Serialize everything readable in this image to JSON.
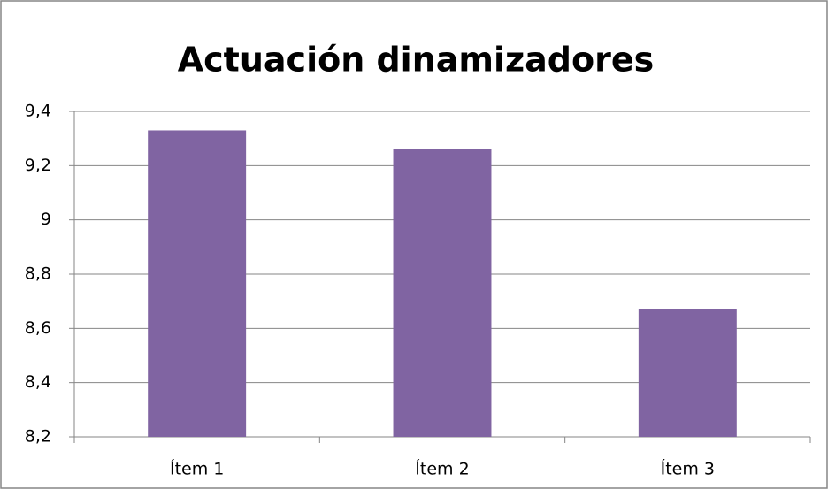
{
  "chart_data": {
    "type": "bar",
    "title": "Actuación dinamizadores",
    "categories": [
      "Ítem 1",
      "Ítem 2",
      "Ítem 3"
    ],
    "values": [
      9.33,
      9.26,
      8.67
    ],
    "color": "#8064a2",
    "ylim": [
      8.2,
      9.4
    ],
    "yticks": [
      {
        "value": 8.2,
        "label": "8,2"
      },
      {
        "value": 8.4,
        "label": "8,4"
      },
      {
        "value": 8.6,
        "label": "8,6"
      },
      {
        "value": 8.8,
        "label": "8,8"
      },
      9,
      {
        "value": 9.2,
        "label": "9,2"
      },
      {
        "value": 9.4,
        "label": "9,4"
      }
    ],
    "grid": true
  }
}
